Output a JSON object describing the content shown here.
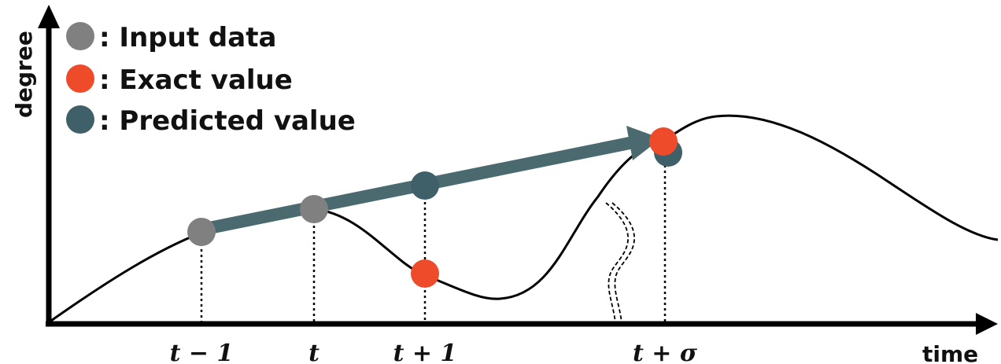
{
  "axes": {
    "y_label": "degree",
    "x_label": "time"
  },
  "legend": [
    {
      "label": ": Input data",
      "color": "#808080"
    },
    {
      "label": ": Exact value",
      "color": "#ee4b2b"
    },
    {
      "label": ": Predicted value",
      "color": "#3f6068"
    }
  ],
  "ticks": [
    {
      "label": "t − 1"
    },
    {
      "label": "t"
    },
    {
      "label": "t + 1"
    },
    {
      "label": "t + σ"
    }
  ],
  "colors": {
    "input": "#808080",
    "exact": "#ee4b2b",
    "predicted": "#3f6068",
    "arrow": "#4a6a70",
    "axis": "#000000"
  }
}
